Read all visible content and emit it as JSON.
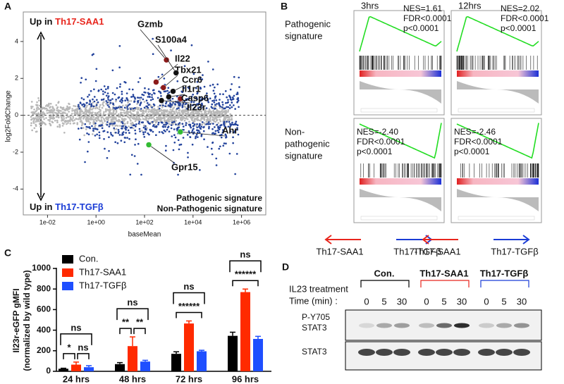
{
  "panel_letters": [
    "A",
    "B",
    "C",
    "D"
  ],
  "chart_data": [
    {
      "type": "scatter",
      "xlabel": "baseMean",
      "ylabel": "log2FoldChange",
      "xscale": "log",
      "xlim": [
        0.001,
        10000000
      ],
      "xticks": [
        {
          "value": 0.01,
          "label": "1e-02"
        },
        {
          "value": 1,
          "label": "1e+00"
        },
        {
          "value": 100,
          "label": "1e+02"
        },
        {
          "value": 10000,
          "label": "1e+04"
        },
        {
          "value": 1000000,
          "label": "1e+06"
        }
      ],
      "ylim": [
        -5.4,
        5.6
      ],
      "yticks": [
        -4,
        -2,
        0,
        2,
        4
      ],
      "up_prefix": "Up in",
      "up_label": {
        "text": "Th17-SAA1",
        "color": "#e8261d"
      },
      "down_label": {
        "text": "Th17-TGFβ",
        "color": "#1a3cd6"
      },
      "series": [
        {
          "name": "Pathogenic signature",
          "color": "#8b1a1a",
          "labels": [
            "Gzmb",
            "Il22",
            "Tbx21",
            "Casp6"
          ],
          "x": [
            800,
            300,
            600,
            3000
          ],
          "y": [
            3.0,
            1.8,
            1.5,
            0.9
          ]
        },
        {
          "name": "Non-Pathogenic signature",
          "color": "#33bb33",
          "labels": [
            "Ahr",
            "Gpr15"
          ],
          "x": [
            3000,
            150
          ],
          "y": [
            -0.9,
            -1.6
          ]
        },
        {
          "color": "#111111",
          "labels": [
            "S100a4",
            "Ccr6",
            "Il1r1",
            "Il23r"
          ],
          "x": [
            2000,
            1500,
            1000,
            500
          ],
          "y": [
            2.3,
            1.3,
            1.0,
            0.8
          ]
        }
      ]
    },
    {
      "type": "bar",
      "ylabel": [
        "Il23r-eGFP gMFI",
        "(normalized by wild type)"
      ],
      "categories": [
        "24 hrs",
        "48 hrs",
        "72 hrs",
        "96 hrs"
      ],
      "ylim": [
        0,
        1000
      ],
      "yticks": [
        0,
        200,
        400,
        600,
        800,
        1000
      ],
      "series": [
        {
          "name": "Con.",
          "color": "#000000",
          "values": [
            25,
            70,
            170,
            345
          ],
          "errors": [
            5,
            15,
            20,
            35
          ]
        },
        {
          "name": "Th17-SAA1",
          "color": "#ff2a00",
          "values": [
            65,
            245,
            465,
            770
          ],
          "errors": [
            25,
            90,
            25,
            30
          ]
        },
        {
          "name": "Th17-TGFβ",
          "color": "#1f4fff",
          "values": [
            40,
            95,
            195,
            315
          ],
          "errors": [
            15,
            12,
            10,
            25
          ]
        }
      ],
      "significance": [
        [
          "ns",
          "*",
          "ns"
        ],
        [
          "ns",
          "**",
          "**"
        ],
        [
          "ns",
          "******"
        ],
        [
          "ns",
          "******"
        ]
      ]
    }
  ],
  "gsea": {
    "times": [
      "3hrs",
      "12hrs"
    ],
    "rows": [
      {
        "label": [
          "Pathogenic",
          "signature"
        ],
        "color": "#d0201a",
        "stats": [
          [
            "NES=1.61",
            "FDR<0.0001",
            "p<0.0001"
          ],
          [
            "NES=2.02",
            "FDR<0.0001",
            "p<0.0001"
          ]
        ]
      },
      {
        "label": [
          "Non-",
          "pathogenic",
          "signature"
        ],
        "color": "#2ab02a",
        "stats": [
          [
            "NES=-2.40",
            "FDR<0.0001",
            "p<0.0001"
          ],
          [
            "NES=-2.46",
            "FDR<0.0001",
            "p<0.0001"
          ]
        ]
      }
    ],
    "arrows": [
      {
        "text": "Th17-SAA1",
        "color": "#e8261d"
      },
      {
        "text": "Th17-TGFβ",
        "color": "#1a3cd6"
      }
    ]
  },
  "blot": {
    "treatment": "IL23 treatment",
    "time_label": "Time (min) :",
    "groups": [
      {
        "name": "Con.",
        "color": "#000000",
        "times": [
          0,
          5,
          30
        ]
      },
      {
        "name": "Th17-SAA1",
        "color": "#e8261d",
        "times": [
          0,
          5,
          30
        ]
      },
      {
        "name": "Th17-TGFβ",
        "color": "#1a3cd6",
        "times": [
          0,
          5,
          30
        ]
      }
    ],
    "rows": [
      [
        "P-Y705",
        "STAT3"
      ],
      [
        "STAT3"
      ]
    ]
  }
}
